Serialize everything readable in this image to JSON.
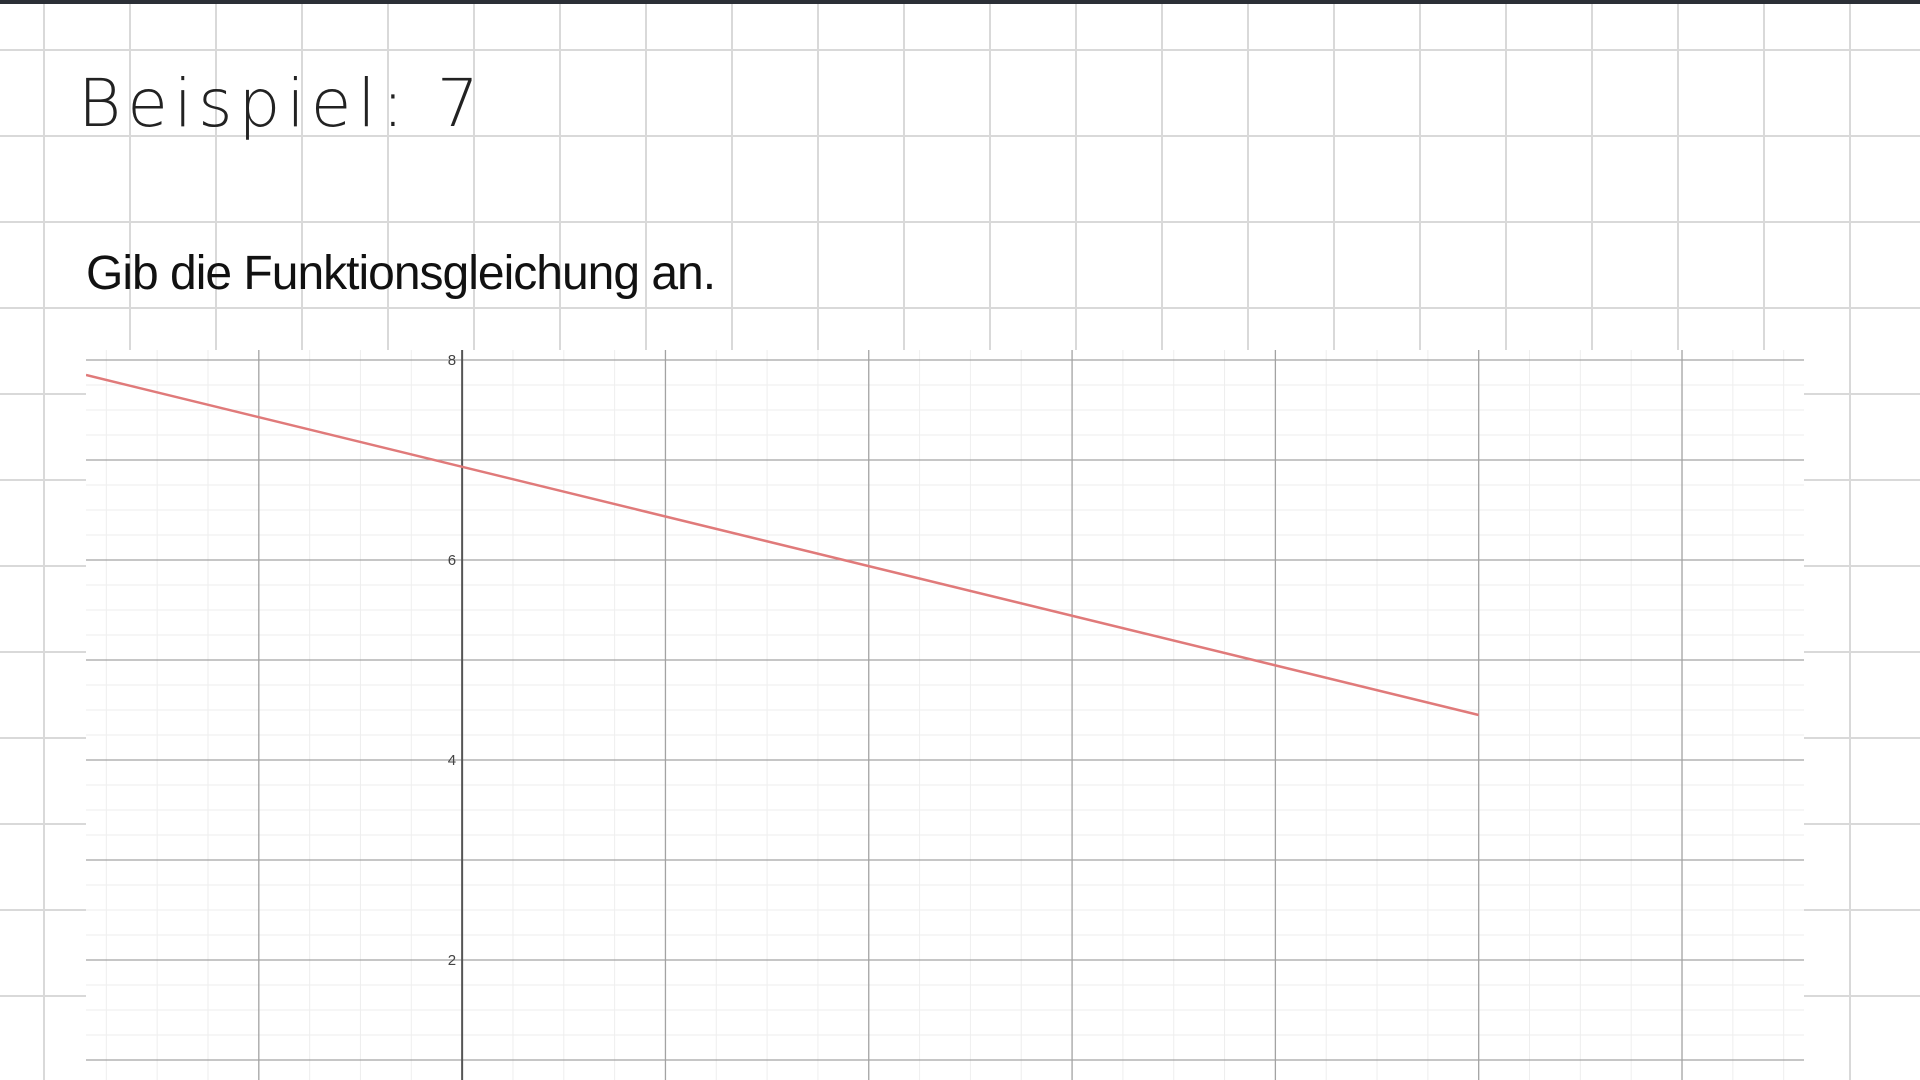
{
  "page": {
    "title": "Beispiel: 7",
    "instruction": "Gib die Funktionsgleichung an."
  },
  "chart_data": {
    "type": "line",
    "title": "",
    "xlabel": "",
    "ylabel": "",
    "xlim": [
      -1.85,
      6.6
    ],
    "ylim": [
      0.8,
      8.1
    ],
    "y_ticks": [
      "2",
      "4",
      "6",
      "8"
    ],
    "grid": true,
    "series": [
      {
        "x": [
          -1.85,
          5.0
        ],
        "y": [
          7.85,
          4.45
        ],
        "color": "#e07a7a"
      }
    ]
  }
}
